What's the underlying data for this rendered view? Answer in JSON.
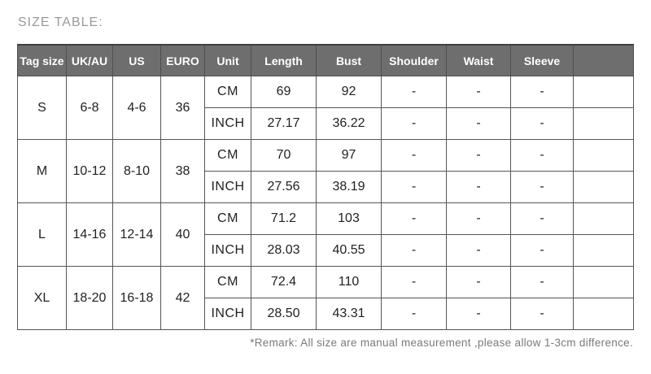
{
  "page": {
    "title": "SIZE TABLE:",
    "remark": "*Remark: All size are manual measurement ,please allow 1-3cm difference."
  },
  "colors": {
    "header_background": "#6e6e6e",
    "header_text": "#ffffff",
    "grid_border": "#555555",
    "body_text": "#222222",
    "title_text": "#9a9a9a",
    "remark_text": "#7a7a7a"
  },
  "table": {
    "columns": [
      "Tag size",
      "UK/AU",
      "US",
      "EURO",
      "Unit",
      "Length",
      "Bust",
      "Shoulder",
      "Waist",
      "Sleeve",
      ""
    ],
    "rows": [
      {
        "tag_size": "S",
        "uk_au": "6-8",
        "us": "4-6",
        "euro": "36",
        "measurements": [
          {
            "unit": "CM",
            "length": "69",
            "bust": "92",
            "shoulder": "-",
            "waist": "-",
            "sleeve": "-",
            "extra": ""
          },
          {
            "unit": "INCH",
            "length": "27.17",
            "bust": "36.22",
            "shoulder": "-",
            "waist": "-",
            "sleeve": "-",
            "extra": ""
          }
        ]
      },
      {
        "tag_size": "M",
        "uk_au": "10-12",
        "us": "8-10",
        "euro": "38",
        "measurements": [
          {
            "unit": "CM",
            "length": "70",
            "bust": "97",
            "shoulder": "-",
            "waist": "-",
            "sleeve": "-",
            "extra": ""
          },
          {
            "unit": "INCH",
            "length": "27.56",
            "bust": "38.19",
            "shoulder": "-",
            "waist": "-",
            "sleeve": "-",
            "extra": ""
          }
        ]
      },
      {
        "tag_size": "L",
        "uk_au": "14-16",
        "us": "12-14",
        "euro": "40",
        "measurements": [
          {
            "unit": "CM",
            "length": "71.2",
            "bust": "103",
            "shoulder": "-",
            "waist": "-",
            "sleeve": "-",
            "extra": ""
          },
          {
            "unit": "INCH",
            "length": "28.03",
            "bust": "40.55",
            "shoulder": "-",
            "waist": "-",
            "sleeve": "-",
            "extra": ""
          }
        ]
      },
      {
        "tag_size": "XL",
        "uk_au": "18-20",
        "us": "16-18",
        "euro": "42",
        "measurements": [
          {
            "unit": "CM",
            "length": "72.4",
            "bust": "110",
            "shoulder": "-",
            "waist": "-",
            "sleeve": "-",
            "extra": ""
          },
          {
            "unit": "INCH",
            "length": "28.50",
            "bust": "43.31",
            "shoulder": "-",
            "waist": "-",
            "sleeve": "-",
            "extra": ""
          }
        ]
      }
    ]
  }
}
